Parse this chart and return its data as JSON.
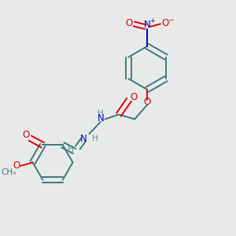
{
  "bg_color": "#e8eaea",
  "bond_color": "#3a7a7a",
  "atom_colors": {
    "O": "#dd0000",
    "N": "#0000cc",
    "C": "#3a7a7a",
    "H": "#5a8a8a"
  },
  "figsize": [
    3.0,
    3.0
  ],
  "dpi": 100,
  "lw": 1.4
}
